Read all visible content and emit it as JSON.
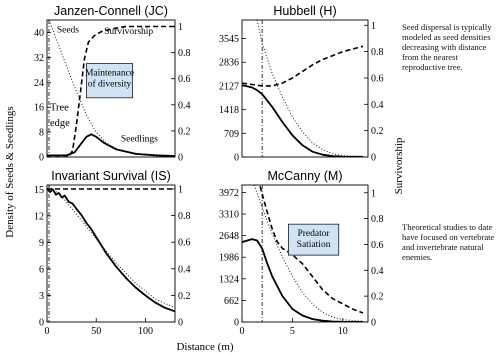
{
  "figure": {
    "y_left_label": "Density of Seeds & Seedlings",
    "y_right_label": "Survivorship",
    "x_label": "Distance (m)"
  },
  "notes": {
    "top": "Seed dispersal is typically modeled as seed densities decreasing with distance from the nearest reproductive tree.",
    "bottom": "Theoretical studies to date have focused on vertebrate and invertebrate natural enemies."
  },
  "chart_data": [
    {
      "id": "jc",
      "type": "line",
      "title": "Janzen-Connell (JC)",
      "xlim": [
        0,
        130
      ],
      "ylim": [
        0,
        44
      ],
      "y2lim": [
        0,
        1.05
      ],
      "yticks": [
        0,
        8,
        16,
        24,
        32,
        40
      ],
      "y2ticks": [
        0,
        0.2,
        0.4,
        0.6,
        0.8,
        1
      ],
      "xticks": [],
      "edge_x": 2,
      "annotations": [
        {
          "text": "Seeds",
          "x": 10,
          "y": 40
        },
        {
          "text": "Survivorship",
          "x": 58,
          "y": 39.5
        },
        {
          "text": "Tree",
          "x": 3,
          "y": 15
        },
        {
          "text": "edge",
          "x": 3,
          "y": 10
        },
        {
          "text": "Seedlings",
          "x": 75,
          "y": 5
        }
      ],
      "boxes": [
        {
          "lines": [
            "Maintenance",
            "of diversity"
          ],
          "x0": 40,
          "y0": 30,
          "x1": 87,
          "y1": 19
        }
      ],
      "series": [
        {
          "name": "Seeds",
          "axis": "left",
          "style": "dotted",
          "x": [
            2,
            10,
            20,
            30,
            40,
            50,
            60,
            75,
            95,
            130
          ],
          "y": [
            44,
            37.5,
            29,
            21,
            13.5,
            8,
            4.5,
            2,
            1,
            0.5
          ]
        },
        {
          "name": "Survivorship",
          "axis": "right",
          "style": "dashed",
          "x": [
            0,
            22,
            26,
            30,
            34,
            38,
            42,
            48,
            55,
            65,
            80,
            130
          ],
          "y": [
            0,
            0,
            0.05,
            0.25,
            0.5,
            0.75,
            0.88,
            0.93,
            0.96,
            0.98,
            1,
            1
          ]
        },
        {
          "name": "Seedlings",
          "axis": "left",
          "style": "solid",
          "x": [
            0,
            20,
            28,
            34,
            40,
            45,
            50,
            58,
            70,
            90,
            110,
            130
          ],
          "y": [
            0.5,
            0.5,
            1.5,
            4,
            6.5,
            7.3,
            6.5,
            4.5,
            2.5,
            1,
            0.5,
            0.3
          ]
        }
      ]
    },
    {
      "id": "h",
      "type": "line",
      "title": "Hubbell (H)",
      "xlim": [
        0,
        12.5
      ],
      "ylim": [
        0,
        4100
      ],
      "y2lim": [
        0,
        1.04
      ],
      "yticks": [
        0,
        709,
        1418,
        2127,
        2836,
        3545
      ],
      "y2ticks": [
        0,
        0.2,
        0.4,
        0.6,
        0.8,
        1
      ],
      "xticks": [],
      "edge_x": 2,
      "annotations": [],
      "boxes": [],
      "series": [
        {
          "name": "Seeds",
          "axis": "left",
          "style": "dotted",
          "x": [
            1.5,
            2,
            3,
            4,
            5,
            6,
            7,
            8,
            9,
            10,
            12
          ],
          "y": [
            4100,
            3400,
            2500,
            1800,
            1200,
            750,
            420,
            220,
            100,
            40,
            10
          ]
        },
        {
          "name": "Survivorship",
          "axis": "right",
          "style": "dashed",
          "x": [
            0,
            1,
            2,
            3,
            4,
            5,
            6,
            7,
            8,
            9,
            10,
            11,
            12
          ],
          "y": [
            0.56,
            0.55,
            0.54,
            0.54,
            0.56,
            0.6,
            0.65,
            0.7,
            0.74,
            0.77,
            0.8,
            0.82,
            0.84
          ]
        },
        {
          "name": "Seedlings",
          "axis": "left",
          "style": "solid",
          "x": [
            0,
            0.5,
            1,
            1.5,
            2,
            3,
            4,
            5,
            6,
            7,
            8,
            9,
            10,
            12
          ],
          "y": [
            2150,
            2120,
            2080,
            2000,
            1880,
            1500,
            1050,
            650,
            350,
            160,
            70,
            25,
            10,
            5
          ]
        }
      ]
    },
    {
      "id": "is",
      "type": "line",
      "title": "Invariant Survival (IS)",
      "xlim": [
        0,
        130
      ],
      "ylim": [
        0,
        15.5
      ],
      "y2lim": [
        0,
        1.03
      ],
      "yticks": [
        0,
        3,
        6,
        9,
        12,
        15
      ],
      "y2ticks": [
        0,
        0.2,
        0.4,
        0.6,
        0.8,
        1
      ],
      "xticks": [
        0,
        50,
        100
      ],
      "edge_x": 2,
      "annotations": [],
      "boxes": [],
      "series": [
        {
          "name": "Seeds",
          "axis": "left",
          "style": "dotted",
          "x": [
            2,
            15,
            30,
            50,
            70,
            90,
            110,
            130
          ],
          "y": [
            15.4,
            14.2,
            12.2,
            9.4,
            6.7,
            4.4,
            2.6,
            1.6
          ]
        },
        {
          "name": "Survivorship",
          "axis": "right",
          "style": "dashed",
          "x": [
            0,
            130
          ],
          "y": [
            1,
            1
          ]
        },
        {
          "name": "Seedlings",
          "axis": "left",
          "style": "solid",
          "x": [
            0,
            3,
            6,
            9,
            12,
            15,
            18,
            22,
            26,
            30,
            35,
            40,
            45,
            50,
            55,
            60,
            70,
            80,
            90,
            100,
            110,
            120,
            130
          ],
          "y": [
            15.1,
            14.7,
            15.0,
            14.4,
            14.6,
            14.1,
            14.3,
            13.6,
            13.4,
            12.8,
            12.1,
            11.2,
            10.5,
            9.6,
            8.7,
            7.8,
            6.3,
            5.0,
            3.9,
            3.0,
            2.2,
            1.6,
            1.2
          ]
        }
      ]
    },
    {
      "id": "m",
      "type": "line",
      "title": "McCanny (M)",
      "xlim": [
        0,
        12.5
      ],
      "ylim": [
        0,
        4200
      ],
      "y2lim": [
        0,
        1.06
      ],
      "yticks": [
        0,
        662,
        1324,
        1986,
        2648,
        3310,
        3972
      ],
      "y2ticks": [
        0,
        0.2,
        0.4,
        0.6,
        0.8,
        1
      ],
      "xticks": [
        0,
        5,
        10
      ],
      "edge_x": 2,
      "annotations": [],
      "boxes": [
        {
          "lines": [
            "Predator",
            "Satiation"
          ],
          "x0": 4.6,
          "y0": 3000,
          "x1": 9.6,
          "y1": 2050
        }
      ],
      "series": [
        {
          "name": "Seeds",
          "axis": "left",
          "style": "dotted",
          "x": [
            1.2,
            2,
            3,
            4,
            5,
            6,
            7,
            8,
            9,
            10,
            12
          ],
          "y": [
            4200,
            3500,
            2700,
            2000,
            1400,
            900,
            550,
            300,
            150,
            70,
            20
          ]
        },
        {
          "name": "Survivorship",
          "axis": "right",
          "style": "dashed",
          "x": [
            1.8,
            2.5,
            3,
            3.5,
            4,
            5,
            6,
            7,
            8,
            9,
            10,
            11,
            12
          ],
          "y": [
            1.05,
            0.85,
            0.72,
            0.62,
            0.57,
            0.52,
            0.45,
            0.35,
            0.25,
            0.18,
            0.14,
            0.1,
            0.07
          ]
        },
        {
          "name": "Seedlings",
          "axis": "left",
          "style": "solid",
          "x": [
            0,
            1,
            1.5,
            2,
            2.5,
            3,
            4,
            5,
            6,
            7,
            8,
            9,
            10,
            12
          ],
          "y": [
            2450,
            2540,
            2500,
            2250,
            1800,
            1400,
            800,
            400,
            200,
            90,
            40,
            15,
            5,
            2
          ]
        }
      ]
    }
  ]
}
